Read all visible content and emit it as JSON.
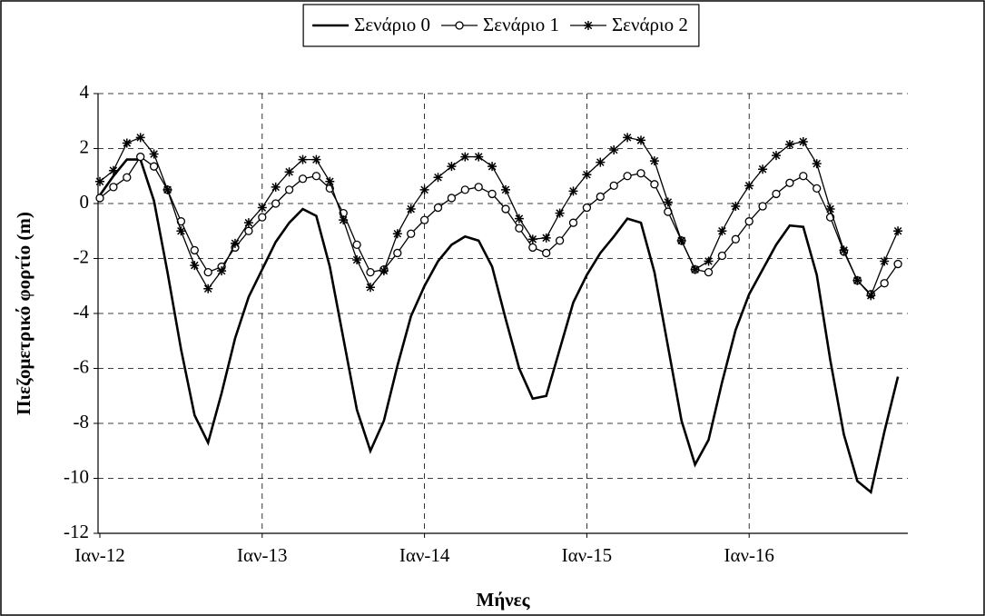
{
  "chart_data": {
    "type": "line",
    "ylabel": "Πιεζομετρικό φορτίο (m)",
    "xlabel": "Μήνες",
    "categories": [
      "Ιαν-12",
      null,
      null,
      null,
      null,
      null,
      null,
      null,
      null,
      null,
      null,
      null,
      "Ιαν-13",
      null,
      null,
      null,
      null,
      null,
      null,
      null,
      null,
      null,
      null,
      null,
      "Ιαν-14",
      null,
      null,
      null,
      null,
      null,
      null,
      null,
      null,
      null,
      null,
      null,
      "Ιαν-15",
      null,
      null,
      null,
      null,
      null,
      null,
      null,
      null,
      null,
      null,
      null,
      "Ιαν-16",
      null,
      null,
      null,
      null,
      null,
      null,
      null,
      null,
      null,
      null,
      null
    ],
    "series": [
      {
        "name": "Σενάριο 0",
        "color": "#000000",
        "marker": "none",
        "values": [
          0.3,
          1.0,
          1.6,
          1.6,
          0.1,
          -2.5,
          -5.3,
          -7.7,
          -8.7,
          -6.9,
          -4.9,
          -3.4,
          -2.4,
          -1.4,
          -0.7,
          -0.2,
          -0.45,
          -2.3,
          -4.9,
          -7.5,
          -9.0,
          -7.9,
          -5.9,
          -4.1,
          -3.0,
          -2.1,
          -1.5,
          -1.2,
          -1.35,
          -2.3,
          -4.2,
          -6.0,
          -7.1,
          -7.0,
          -5.3,
          -3.6,
          -2.6,
          -1.8,
          -1.2,
          -0.55,
          -0.7,
          -2.5,
          -5.2,
          -7.9,
          -9.5,
          -8.6,
          -6.5,
          -4.6,
          -3.3,
          -2.4,
          -1.5,
          -0.8,
          -0.85,
          -2.6,
          -5.7,
          -8.4,
          -10.1,
          -10.5,
          -8.3,
          -6.3
        ]
      },
      {
        "name": "Σενάριο 1",
        "color": "#000000",
        "marker": "circle",
        "values": [
          0.2,
          0.6,
          0.95,
          1.7,
          1.35,
          0.5,
          -0.65,
          -1.7,
          -2.5,
          -2.3,
          -1.6,
          -1.0,
          -0.5,
          0.0,
          0.5,
          0.9,
          1.0,
          0.55,
          -0.35,
          -1.5,
          -2.5,
          -2.4,
          -1.8,
          -1.1,
          -0.6,
          -0.15,
          0.2,
          0.5,
          0.6,
          0.35,
          -0.2,
          -0.9,
          -1.6,
          -1.8,
          -1.35,
          -0.7,
          -0.15,
          0.25,
          0.65,
          1.0,
          1.1,
          0.7,
          -0.3,
          -1.35,
          -2.4,
          -2.5,
          -1.9,
          -1.3,
          -0.65,
          -0.1,
          0.35,
          0.75,
          1.0,
          0.55,
          -0.5,
          -1.75,
          -2.8,
          -3.3,
          -2.9,
          -2.2
        ]
      },
      {
        "name": "Σενάριο 2",
        "color": "#000000",
        "marker": "star",
        "values": [
          0.8,
          1.2,
          2.2,
          2.4,
          1.8,
          0.5,
          -1.0,
          -2.25,
          -3.1,
          -2.45,
          -1.45,
          -0.7,
          -0.15,
          0.6,
          1.15,
          1.6,
          1.6,
          0.8,
          -0.6,
          -2.05,
          -3.05,
          -2.45,
          -1.1,
          -0.2,
          0.5,
          0.95,
          1.35,
          1.7,
          1.7,
          1.35,
          0.5,
          -0.55,
          -1.3,
          -1.25,
          -0.35,
          0.45,
          1.05,
          1.5,
          1.95,
          2.4,
          2.3,
          1.55,
          0.05,
          -1.35,
          -2.4,
          -2.1,
          -1.0,
          -0.1,
          0.65,
          1.25,
          1.75,
          2.15,
          2.25,
          1.45,
          -0.2,
          -1.7,
          -2.8,
          -3.35,
          -2.1,
          -1.0
        ]
      }
    ],
    "ylim": [
      -12,
      4
    ],
    "yticks": [
      -12,
      -10,
      -8,
      -6,
      -4,
      -2,
      0,
      2,
      4
    ],
    "grid": true,
    "legend": "top"
  }
}
